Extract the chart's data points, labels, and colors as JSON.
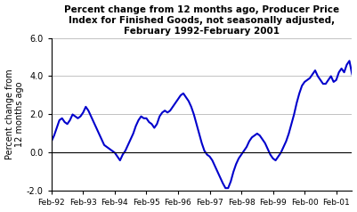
{
  "title": "Percent change from 12 months ago, Producer Price\nIndex for Finished Goods, not seasonally adjusted,\nFebruary 1992-February 2001",
  "ylabel": "Percent change from\n12 months ago",
  "line_color": "#0000CC",
  "line_width": 1.5,
  "ylim": [
    -2.0,
    6.0
  ],
  "yticks": [
    -2.0,
    0.0,
    2.0,
    4.0,
    6.0
  ],
  "xtick_labels": [
    "Feb-92",
    "Feb-93",
    "Feb-94",
    "Feb-95",
    "Feb-96",
    "Feb-97",
    "Feb-98",
    "Feb-99",
    "Feb-00",
    "Feb-01"
  ],
  "background_color": "#ffffff",
  "grid_color": "#aaaaaa",
  "values": [
    0.6,
    0.9,
    1.3,
    1.7,
    1.8,
    1.6,
    1.5,
    1.7,
    2.0,
    1.9,
    1.8,
    1.9,
    2.1,
    2.4,
    2.2,
    1.9,
    1.6,
    1.3,
    1.0,
    0.7,
    0.4,
    0.3,
    0.2,
    0.1,
    0.0,
    -0.2,
    -0.4,
    -0.1,
    0.1,
    0.4,
    0.7,
    1.0,
    1.4,
    1.7,
    1.9,
    1.8,
    1.8,
    1.6,
    1.5,
    1.3,
    1.5,
    1.9,
    2.1,
    2.2,
    2.1,
    2.2,
    2.4,
    2.6,
    2.8,
    3.0,
    3.1,
    2.9,
    2.7,
    2.4,
    2.0,
    1.5,
    1.0,
    0.5,
    0.1,
    -0.1,
    -0.2,
    -0.4,
    -0.7,
    -1.0,
    -1.3,
    -1.6,
    -1.85,
    -1.85,
    -1.5,
    -1.0,
    -0.6,
    -0.3,
    -0.1,
    0.1,
    0.3,
    0.6,
    0.8,
    0.9,
    1.0,
    0.9,
    0.7,
    0.5,
    0.2,
    -0.1,
    -0.3,
    -0.4,
    -0.2,
    0.0,
    0.3,
    0.6,
    1.0,
    1.5,
    2.0,
    2.6,
    3.1,
    3.5,
    3.7,
    3.8,
    3.9,
    4.1,
    4.3,
    4.0,
    3.8,
    3.6,
    3.6,
    3.8,
    4.0,
    3.7,
    3.8,
    4.2,
    4.4,
    4.2,
    4.6,
    4.8,
    4.1
  ]
}
